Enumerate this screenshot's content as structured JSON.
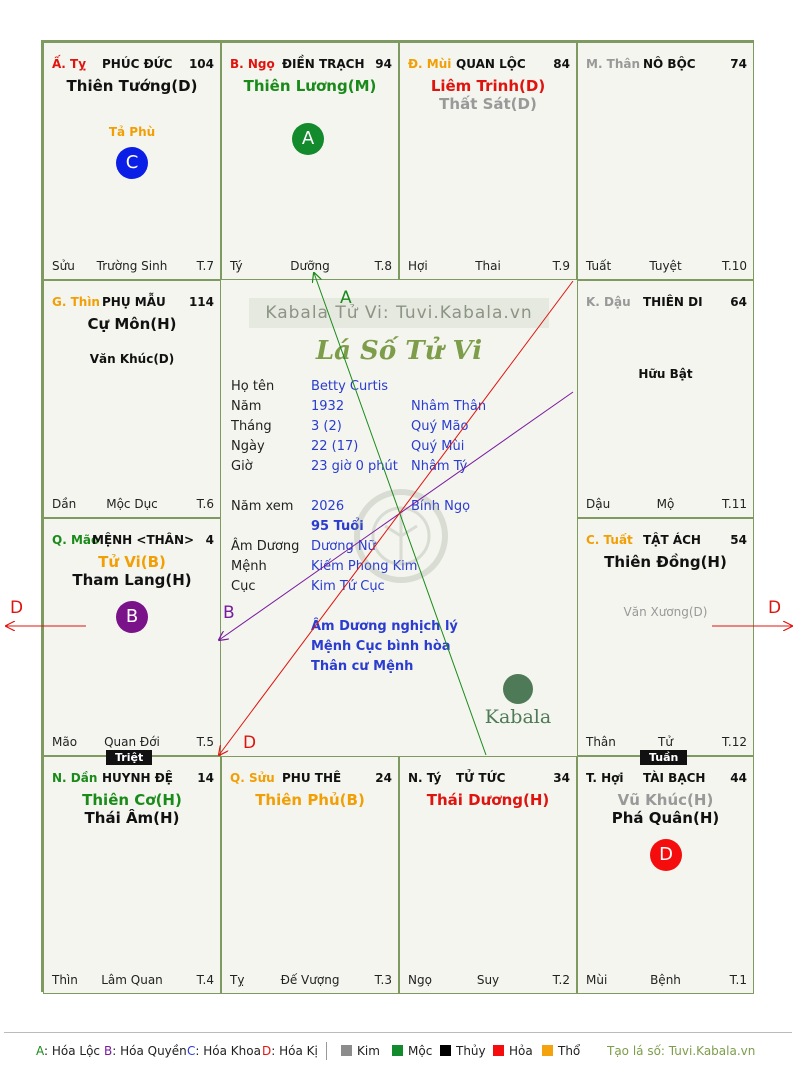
{
  "cells": [
    {
      "id": "ty",
      "can": "Ấ. Tỵ",
      "can_color": "#e0140f",
      "palace": "PHÚC ĐỨC",
      "num": "104",
      "stars": [
        {
          "t": "Thiên Tướng(D)",
          "c": "#111"
        }
      ],
      "minors": [],
      "bl": "Sửu",
      "bc": "Trường Sinh",
      "br": "T.7"
    },
    {
      "id": "ngo",
      "can": "B. Ngọ",
      "can_color": "#e0140f",
      "palace": "ĐIỀN TRẠCH",
      "num": "94",
      "stars": [
        {
          "t": "Thiên Lương(M)",
          "c": "#1a8a1a"
        }
      ],
      "minors": [],
      "bl": "Tý",
      "bc": "Dưỡng",
      "br": "T.8"
    },
    {
      "id": "mui",
      "can": "Đ. Mùi",
      "can_color": "#f29f05",
      "palace": "QUAN LỘC",
      "num": "84",
      "stars": [
        {
          "t": "Liêm Trinh(D)",
          "c": "#e0140f"
        },
        {
          "t": "Thất Sát(D)",
          "c": "#999"
        }
      ],
      "minors": [],
      "bl": "Hợi",
      "bc": "Thai",
      "br": "T.9"
    },
    {
      "id": "than",
      "can": "M. Thân",
      "can_color": "#999",
      "palace": "NÔ BỘC",
      "num": "74",
      "stars": [],
      "minors": [],
      "bl": "Tuất",
      "bc": "Tuyệt",
      "br": "T.10"
    },
    {
      "id": "thin",
      "can": "G. Thìn",
      "can_color": "#f29f05",
      "palace": "PHỤ MẪU",
      "num": "114",
      "stars": [
        {
          "t": "Cự Môn(H)",
          "c": "#111"
        }
      ],
      "minors": [
        {
          "t": "Văn Khúc(D)",
          "c": "#111"
        }
      ],
      "bl": "Dần",
      "bc": "Mộc Dục",
      "br": "T.6"
    },
    {
      "id": "dau",
      "can": "K. Dậu",
      "can_color": "#999",
      "palace": "THIÊN DI",
      "num": "64",
      "stars": [],
      "minors": [
        {
          "t": "Hữu Bật",
          "c": "#111"
        }
      ],
      "bl": "Dậu",
      "bc": "Mộ",
      "br": "T.11"
    },
    {
      "id": "mao",
      "can": "Q. Mão",
      "can_color": "#1a8a1a",
      "palace": "MỆNH <THÂN>",
      "num": "4",
      "stars": [
        {
          "t": "Tử Vi(B)",
          "c": "#f29f05"
        },
        {
          "t": "Tham Lang(H)",
          "c": "#111"
        }
      ],
      "minors": [],
      "bl": "Mão",
      "bc": "Quan Đới",
      "br": "T.5"
    },
    {
      "id": "tuat",
      "can": "C. Tuất",
      "can_color": "#f29f05",
      "palace": "TẬT ÁCH",
      "num": "54",
      "stars": [
        {
          "t": "Thiên Đồng(H)",
          "c": "#111"
        }
      ],
      "minors": [
        {
          "t": "Văn Xương(D)",
          "c": "#999"
        }
      ],
      "bl": "Thân",
      "bc": "Tử",
      "br": "T.12"
    },
    {
      "id": "dan",
      "can": "N. Dần",
      "can_color": "#1a8a1a",
      "palace": "HUYNH ĐỆ",
      "num": "14",
      "stars": [
        {
          "t": "Thiên Cơ(H)",
          "c": "#1a8a1a"
        },
        {
          "t": "Thái Âm(H)",
          "c": "#111"
        }
      ],
      "minors": [],
      "bl": "Thìn",
      "bc": "Lâm Quan",
      "br": "T.4"
    },
    {
      "id": "suu",
      "can": "Q. Sửu",
      "can_color": "#f29f05",
      "palace": "PHU THÊ",
      "num": "24",
      "stars": [
        {
          "t": "Thiên Phủ(B)",
          "c": "#f29f05"
        }
      ],
      "minors": [],
      "bl": "Tỵ",
      "bc": "Đế Vượng",
      "br": "T.3"
    },
    {
      "id": "tys",
      "can": "N. Tý",
      "can_color": "#111",
      "palace": "TỬ TỨC",
      "num": "34",
      "stars": [
        {
          "t": "Thái Dương(H)",
          "c": "#e0140f"
        }
      ],
      "minors": [],
      "bl": "Ngọ",
      "bc": "Suy",
      "br": "T.2"
    },
    {
      "id": "hoi",
      "can": "T. Hợi",
      "can_color": "#111",
      "palace": "TÀI BẠCH",
      "num": "44",
      "stars": [
        {
          "t": "Vũ Khúc(H)",
          "c": "#999"
        },
        {
          "t": "Phá Quân(H)",
          "c": "#111"
        }
      ],
      "minors": [],
      "bl": "Mùi",
      "bc": "Bệnh",
      "br": "T.1"
    }
  ],
  "ta_phu": "Tả Phù",
  "circles": {
    "a": "A",
    "b": "B",
    "c": "C",
    "d": "D"
  },
  "arrow_labels": {
    "a": "A",
    "b": "B",
    "d": "D",
    "d_left": "D",
    "d_right": "D"
  },
  "tags": {
    "triet": "Triệt",
    "tuan": "Tuần"
  },
  "center": {
    "watermark": "Kabala Tử Vi: Tuvi.Kabala.vn",
    "title": "Lá Số Tử Vi",
    "rows": [
      {
        "label": "Họ tên",
        "v1": "Betty Curtis",
        "v2": ""
      },
      {
        "label": "Năm",
        "v1": "1932",
        "v2": "Nhâm Thân"
      },
      {
        "label": "Tháng",
        "v1": "3  (2)",
        "v2": "Quý Mão"
      },
      {
        "label": "Ngày",
        "v1": "22  (17)",
        "v2": "Quý Mùi"
      },
      {
        "label": "Giờ",
        "v1": "23 giờ 0 phút",
        "v2": "Nhâm Tý"
      }
    ],
    "nam_xem_label": "Năm xem",
    "nam_xem": "2026",
    "nam_xem_can": "Bính Ngọ",
    "tuoi": "95 Tuổi",
    "rows2": [
      {
        "label": "Âm Dương",
        "v1": "Dương Nữ"
      },
      {
        "label": "Mệnh",
        "v1": "Kiếm Phong Kim"
      },
      {
        "label": "Cục",
        "v1": "Kim Tứ Cục"
      }
    ],
    "notes": [
      "Âm Dương nghịch lý",
      "Mệnh Cục bình hòa",
      "Thân cư Mệnh"
    ],
    "logo": "Kabala"
  },
  "legend": {
    "a": "A: Hóa Lộc",
    "b": "B: Hóa Quyền",
    "c": "C: Hóa Khoa",
    "d": "D: Hóa Kị",
    "elements": [
      {
        "name": "Kim",
        "color": "#8c8c8c"
      },
      {
        "name": "Mộc",
        "color": "#138a2c"
      },
      {
        "name": "Thủy",
        "color": "#000000"
      },
      {
        "name": "Hỏa",
        "color": "#f50d0d"
      },
      {
        "name": "Thổ",
        "color": "#f5a30d"
      }
    ],
    "site": "Tạo lá số: Tuvi.Kabala.vn"
  }
}
